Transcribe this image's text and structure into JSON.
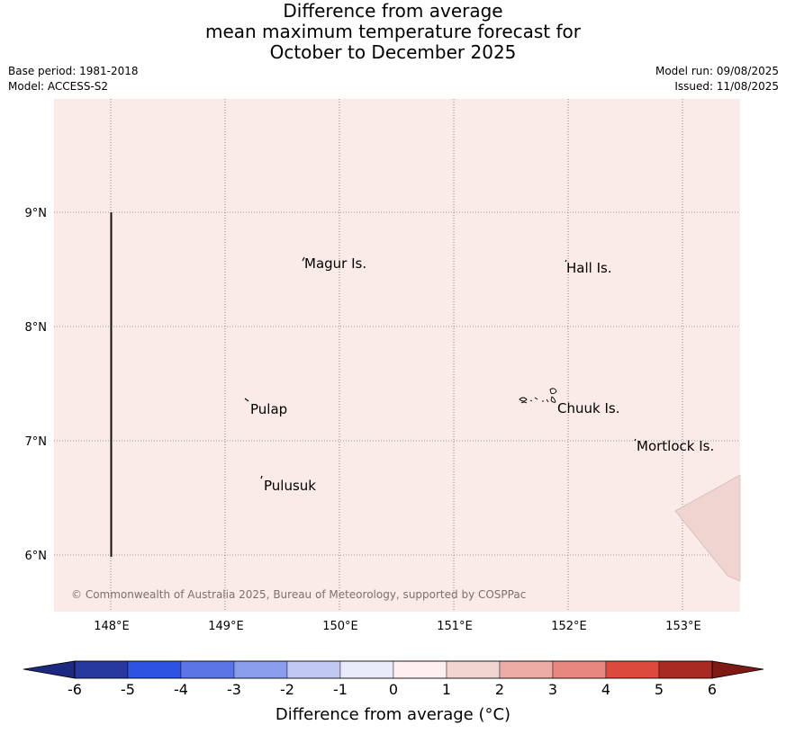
{
  "title": {
    "line1": "Difference from average",
    "line2": "mean maximum temperature forecast for",
    "line3": "October to December 2025"
  },
  "meta": {
    "base_period": "Base period: 1981-2018",
    "model": "Model: ACCESS-S2",
    "model_run": "Model run: 09/08/2025",
    "issued": "Issued: 11/08/2025"
  },
  "map": {
    "background_color": "#fbebe8",
    "lon_ticks": [
      "148°E",
      "149°E",
      "150°E",
      "151°E",
      "152°E",
      "153°E"
    ],
    "lat_ticks": [
      "9°N",
      "8°N",
      "7°N",
      "6°N"
    ],
    "place_labels": [
      "Magur Is.",
      "Hall Is.",
      "Pulap",
      "Chuuk Is.",
      "Mortlock Is.",
      "Pulusuk"
    ],
    "copyright": "© Commonwealth of Australia 2025, Bureau of Meteorology, supported by COSPPac"
  },
  "colorbar": {
    "tick_labels": [
      "-6",
      "-5",
      "-4",
      "-3",
      "-2",
      "-1",
      "0",
      "1",
      "2",
      "3",
      "4",
      "5",
      "6"
    ],
    "colors": [
      "#27399f",
      "#2e52e2",
      "#5b75e6",
      "#8a9dec",
      "#c1c9f3",
      "#e8eafa",
      "#fdf0ee",
      "#f2d5d1",
      "#edaba5",
      "#e88780",
      "#dc4a3e",
      "#a92a22"
    ],
    "under_color": "#1d2980",
    "over_color": "#7d1a14",
    "label": "Difference from average (°C)"
  }
}
